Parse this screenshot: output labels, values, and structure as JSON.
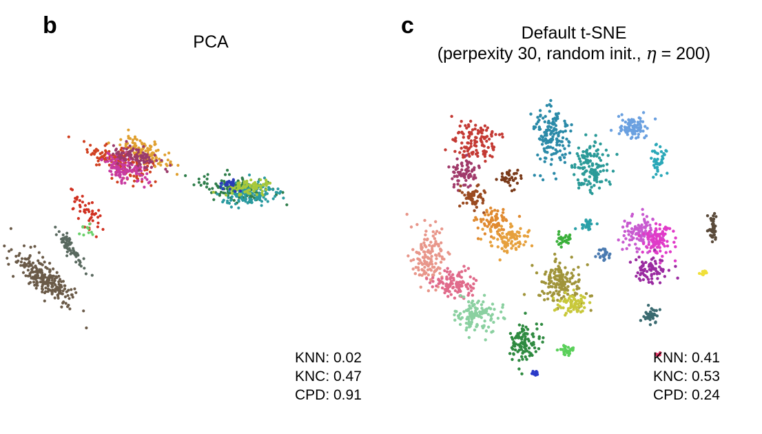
{
  "panels": [
    {
      "letter": "b",
      "title": "PCA",
      "metrics": [
        "KNN: 0.02",
        "KNC: 0.47",
        "CPD: 0.91"
      ]
    },
    {
      "letter": "c",
      "title_line1": "Default t-SNE",
      "title_pre": "(perpexity 30, random init., ",
      "title_eta": "η",
      "title_post": " = 200)",
      "metrics": [
        "KNN: 0.41",
        "KNC: 0.53",
        "CPD: 0.24"
      ]
    }
  ],
  "chart_data": [
    {
      "type": "scatter",
      "title": "PCA",
      "axes_visible": false,
      "grid": false,
      "metrics": {
        "KNN": 0.02,
        "KNC": 0.47,
        "CPD": 0.91
      },
      "clusters": [
        {
          "color": "#d04020",
          "x": 0.22,
          "y": 0.72,
          "sx": 0.05,
          "sy": 0.022,
          "rot": -24,
          "n": 160
        },
        {
          "color": "#c83aa0",
          "x": 0.24,
          "y": 0.69,
          "sx": 0.04,
          "sy": 0.018,
          "rot": -24,
          "n": 120
        },
        {
          "color": "#e0a030",
          "x": 0.3,
          "y": 0.75,
          "sx": 0.04,
          "sy": 0.016,
          "rot": -24,
          "n": 110
        },
        {
          "color": "#9a3a6a",
          "x": 0.27,
          "y": 0.73,
          "sx": 0.04,
          "sy": 0.018,
          "rot": -24,
          "n": 90
        },
        {
          "color": "#2e7d4a",
          "x": 0.58,
          "y": 0.63,
          "sx": 0.055,
          "sy": 0.02,
          "rot": -5,
          "n": 140
        },
        {
          "color": "#2a9aa0",
          "x": 0.63,
          "y": 0.61,
          "sx": 0.05,
          "sy": 0.02,
          "rot": 8,
          "n": 130
        },
        {
          "color": "#a8c83a",
          "x": 0.62,
          "y": 0.63,
          "sx": 0.035,
          "sy": 0.014,
          "rot": 5,
          "n": 80
        },
        {
          "color": "#2a3ab8",
          "x": 0.56,
          "y": 0.64,
          "sx": 0.015,
          "sy": 0.01,
          "rot": 0,
          "n": 25
        },
        {
          "color": "#6a5a48",
          "x": -0.01,
          "y": 0.33,
          "sx": 0.06,
          "sy": 0.02,
          "rot": -42,
          "n": 230
        },
        {
          "color": "#5a6a60",
          "x": 0.07,
          "y": 0.43,
          "sx": 0.045,
          "sy": 0.01,
          "rot": -55,
          "n": 60
        },
        {
          "color": "#d03020",
          "x": 0.12,
          "y": 0.55,
          "sx": 0.04,
          "sy": 0.015,
          "rot": -60,
          "n": 45
        },
        {
          "color": "#6ad06a",
          "x": 0.11,
          "y": 0.5,
          "sx": 0.02,
          "sy": 0.01,
          "rot": -60,
          "n": 10
        }
      ]
    },
    {
      "type": "scatter",
      "title": "Default t-SNE (perpexity 30, random init., η = 200)",
      "axes_visible": false,
      "grid": false,
      "metrics": {
        "KNN": 0.41,
        "KNC": 0.53,
        "CPD": 0.24
      },
      "clusters": [
        {
          "color": "#c43a34",
          "x": 0.2,
          "y": 0.78,
          "sx": 0.035,
          "sy": 0.03,
          "rot": 0,
          "n": 120
        },
        {
          "color": "#a03a6a",
          "x": 0.16,
          "y": 0.68,
          "sx": 0.02,
          "sy": 0.025,
          "rot": 0,
          "n": 70
        },
        {
          "color": "#9a4a20",
          "x": 0.19,
          "y": 0.6,
          "sx": 0.02,
          "sy": 0.02,
          "rot": 0,
          "n": 60
        },
        {
          "color": "#e08a30",
          "x": 0.25,
          "y": 0.52,
          "sx": 0.025,
          "sy": 0.02,
          "rot": 0,
          "n": 70
        },
        {
          "color": "#7a3a1a",
          "x": 0.3,
          "y": 0.66,
          "sx": 0.015,
          "sy": 0.015,
          "rot": 0,
          "n": 35
        },
        {
          "color": "#e6a03c",
          "x": 0.3,
          "y": 0.46,
          "sx": 0.03,
          "sy": 0.025,
          "rot": 0,
          "n": 90
        },
        {
          "color": "#e8968a",
          "x": 0.05,
          "y": 0.4,
          "sx": 0.025,
          "sy": 0.05,
          "rot": 0,
          "n": 140
        },
        {
          "color": "#e06a8a",
          "x": 0.13,
          "y": 0.31,
          "sx": 0.035,
          "sy": 0.025,
          "rot": 0,
          "n": 110
        },
        {
          "color": "#2a8aa8",
          "x": 0.43,
          "y": 0.8,
          "sx": 0.03,
          "sy": 0.05,
          "rot": 0,
          "n": 150
        },
        {
          "color": "#2a9a98",
          "x": 0.55,
          "y": 0.7,
          "sx": 0.03,
          "sy": 0.04,
          "rot": 0,
          "n": 140
        },
        {
          "color": "#6aa0e0",
          "x": 0.68,
          "y": 0.83,
          "sx": 0.025,
          "sy": 0.02,
          "rot": 0,
          "n": 80
        },
        {
          "color": "#2aa8b8",
          "x": 0.76,
          "y": 0.73,
          "sx": 0.015,
          "sy": 0.025,
          "rot": 0,
          "n": 40
        },
        {
          "color": "#c85ad0",
          "x": 0.7,
          "y": 0.48,
          "sx": 0.03,
          "sy": 0.03,
          "rot": 0,
          "n": 100
        },
        {
          "color": "#e03ac8",
          "x": 0.76,
          "y": 0.46,
          "sx": 0.025,
          "sy": 0.03,
          "rot": 0,
          "n": 90
        },
        {
          "color": "#9a2aa0",
          "x": 0.73,
          "y": 0.36,
          "sx": 0.025,
          "sy": 0.02,
          "rot": 0,
          "n": 70
        },
        {
          "color": "#a0943a",
          "x": 0.46,
          "y": 0.32,
          "sx": 0.035,
          "sy": 0.035,
          "rot": 0,
          "n": 150
        },
        {
          "color": "#c8c83a",
          "x": 0.5,
          "y": 0.25,
          "sx": 0.025,
          "sy": 0.02,
          "rot": 0,
          "n": 70
        },
        {
          "color": "#8ad0a0",
          "x": 0.2,
          "y": 0.21,
          "sx": 0.03,
          "sy": 0.03,
          "rot": 0,
          "n": 120
        },
        {
          "color": "#2e8a40",
          "x": 0.35,
          "y": 0.12,
          "sx": 0.025,
          "sy": 0.03,
          "rot": 0,
          "n": 100
        },
        {
          "color": "#5a4a3a",
          "x": 0.93,
          "y": 0.5,
          "sx": 0.008,
          "sy": 0.025,
          "rot": 0,
          "n": 40
        },
        {
          "color": "#3a6a70",
          "x": 0.74,
          "y": 0.21,
          "sx": 0.015,
          "sy": 0.012,
          "rot": 0,
          "n": 35
        },
        {
          "color": "#2aa0a8",
          "x": 0.54,
          "y": 0.51,
          "sx": 0.012,
          "sy": 0.01,
          "rot": 0,
          "n": 25
        },
        {
          "color": "#3ab03a",
          "x": 0.47,
          "y": 0.46,
          "sx": 0.012,
          "sy": 0.01,
          "rot": 0,
          "n": 25
        },
        {
          "color": "#4a7ab0",
          "x": 0.59,
          "y": 0.41,
          "sx": 0.012,
          "sy": 0.01,
          "rot": 0,
          "n": 25
        },
        {
          "color": "#5ad05a",
          "x": 0.48,
          "y": 0.09,
          "sx": 0.012,
          "sy": 0.012,
          "rot": 0,
          "n": 25
        },
        {
          "color": "#f0e03a",
          "x": 0.9,
          "y": 0.35,
          "sx": 0.006,
          "sy": 0.006,
          "rot": 0,
          "n": 14
        },
        {
          "color": "#2a3ac8",
          "x": 0.38,
          "y": 0.02,
          "sx": 0.005,
          "sy": 0.005,
          "rot": 0,
          "n": 10
        },
        {
          "color": "#e03060",
          "x": 0.76,
          "y": 0.08,
          "sx": 0.008,
          "sy": 0.003,
          "rot": 0,
          "n": 8
        }
      ]
    }
  ]
}
